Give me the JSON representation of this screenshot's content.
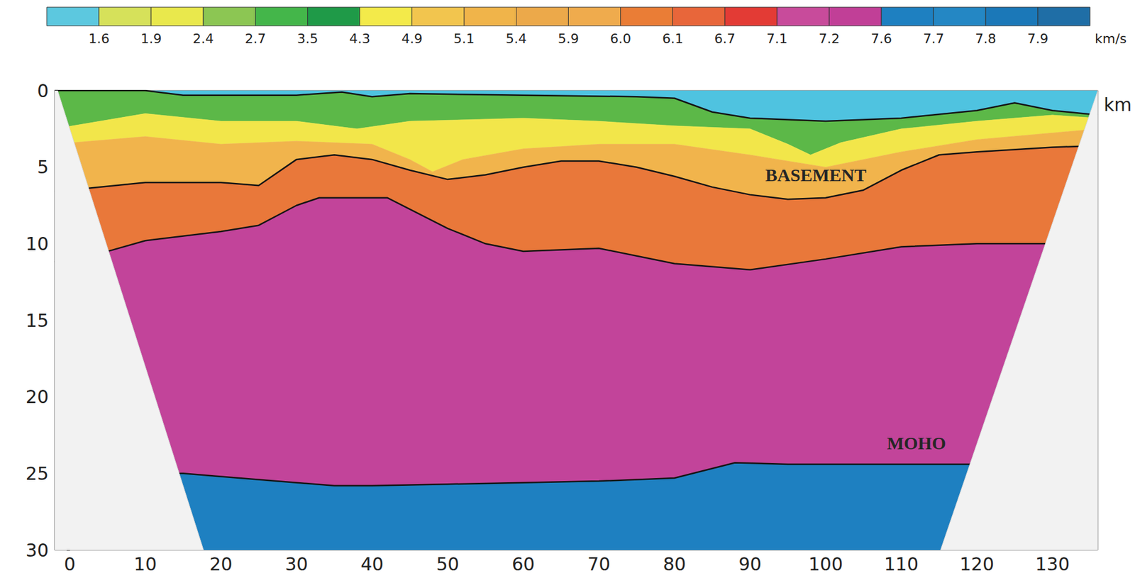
{
  "chart_data": {
    "type": "velocity_section",
    "x_label": "km",
    "xlim": [
      -2,
      136
    ],
    "xticks": [
      0,
      10,
      20,
      30,
      40,
      50,
      60,
      70,
      80,
      90,
      100,
      110,
      120,
      130
    ],
    "ylim": [
      0,
      30
    ],
    "yticks": [
      0,
      5,
      10,
      15,
      20,
      25,
      30
    ],
    "colorbar": {
      "colors": [
        "#5cc8df",
        "#d6e15a",
        "#e9e84c",
        "#8cc653",
        "#44b64a",
        "#1f9a48",
        "#f3ea4a",
        "#f2c54e",
        "#f0b44a",
        "#eca94a",
        "#efab4d",
        "#ea7d36",
        "#e8663a",
        "#e33b35",
        "#c84b9b",
        "#c13f97",
        "#1e80c1",
        "#2487c4",
        "#1b78b8",
        "#1f6ea6"
      ],
      "ticks": [
        1.6,
        1.9,
        2.4,
        2.7,
        3.5,
        4.3,
        4.9,
        5.1,
        5.4,
        5.9,
        {
          "value": 6,
          "label": "6.0"
        },
        6.1,
        6.7,
        7.1,
        7.2,
        7.6,
        7.7,
        7.8,
        7.9
      ],
      "label": "km/s"
    },
    "colors": [
      "#4fc3e0",
      "#5cb848",
      "#f2e64a",
      "#f1b44c",
      "#e9783a",
      "#c2449a",
      "#1e80c1"
    ],
    "boundaries": [
      {
        "x": [
          -2,
          10,
          15,
          30,
          36,
          40,
          45,
          60,
          75,
          80,
          85,
          90,
          100,
          110,
          120,
          125,
          130,
          136
        ],
        "y": [
          0,
          0,
          0.3,
          0.3,
          0.1,
          0.4,
          0.2,
          0.3,
          0.4,
          0.5,
          1.4,
          1.8,
          2.0,
          1.8,
          1.3,
          0.8,
          1.3,
          1.6
        ],
        "line_style": "solid"
      },
      {
        "x": [
          -2,
          10,
          20,
          30,
          38,
          45,
          60,
          70,
          80,
          90,
          95,
          98,
          102,
          110,
          120,
          130,
          136
        ],
        "y": [
          2.5,
          1.5,
          2.0,
          2.0,
          2.5,
          2.0,
          1.8,
          2.0,
          2.3,
          2.5,
          3.5,
          4.2,
          3.4,
          2.5,
          2.0,
          1.6,
          1.8
        ],
        "line_style": "none"
      },
      {
        "x": [
          -2,
          10,
          20,
          30,
          40,
          45,
          48,
          52,
          60,
          70,
          80,
          90,
          100,
          110,
          120,
          136
        ],
        "y": [
          3.5,
          3.0,
          3.5,
          3.3,
          3.5,
          4.5,
          5.3,
          4.5,
          3.8,
          3.5,
          3.5,
          4.2,
          5.0,
          4.0,
          3.2,
          2.5
        ],
        "line_style": "none"
      },
      {
        "x": [
          -2,
          10,
          20,
          25,
          30,
          35,
          40,
          45,
          50,
          55,
          60,
          65,
          70,
          75,
          80,
          85,
          90,
          95,
          100,
          105,
          110,
          115,
          120,
          130,
          136
        ],
        "y": [
          6.6,
          6.0,
          6.0,
          6.2,
          4.5,
          4.2,
          4.5,
          5.2,
          5.8,
          5.5,
          5.0,
          4.6,
          4.6,
          5.0,
          5.6,
          6.3,
          6.8,
          7.1,
          7.0,
          6.5,
          5.2,
          4.2,
          4.0,
          3.7,
          3.6
        ],
        "line_style": "solid"
      },
      {
        "x": [
          -2,
          5,
          10,
          20,
          25,
          30,
          33,
          42,
          50,
          55,
          60,
          70,
          80,
          90,
          100,
          110,
          120,
          130,
          136
        ],
        "y": [
          11.2,
          10.5,
          9.8,
          9.2,
          8.8,
          7.5,
          7.0,
          7.0,
          9.0,
          10.0,
          10.5,
          10.3,
          11.3,
          11.7,
          11.0,
          10.2,
          10.0,
          10.0,
          10.0
        ],
        "line_style": "solid"
      },
      {
        "x": [
          -2,
          15,
          20,
          30,
          35,
          40,
          50,
          60,
          70,
          80,
          88,
          95,
          110,
          120,
          136
        ],
        "y": [
          25.0,
          25.0,
          25.2,
          25.6,
          25.8,
          25.8,
          25.7,
          25.6,
          25.5,
          25.3,
          24.3,
          24.4,
          24.4,
          24.4,
          24.4
        ],
        "line_style": "solid"
      }
    ],
    "coverage": {
      "x": [
        -1.6,
        17.7,
        115.2,
        136
      ],
      "y": [
        0,
        30,
        30,
        0
      ]
    },
    "annotations": [
      {
        "text": "BASEMENT",
        "x": 98.7,
        "y": 5.5
      },
      {
        "text": "MOHO",
        "x": 112,
        "y": 23.0
      }
    ]
  }
}
